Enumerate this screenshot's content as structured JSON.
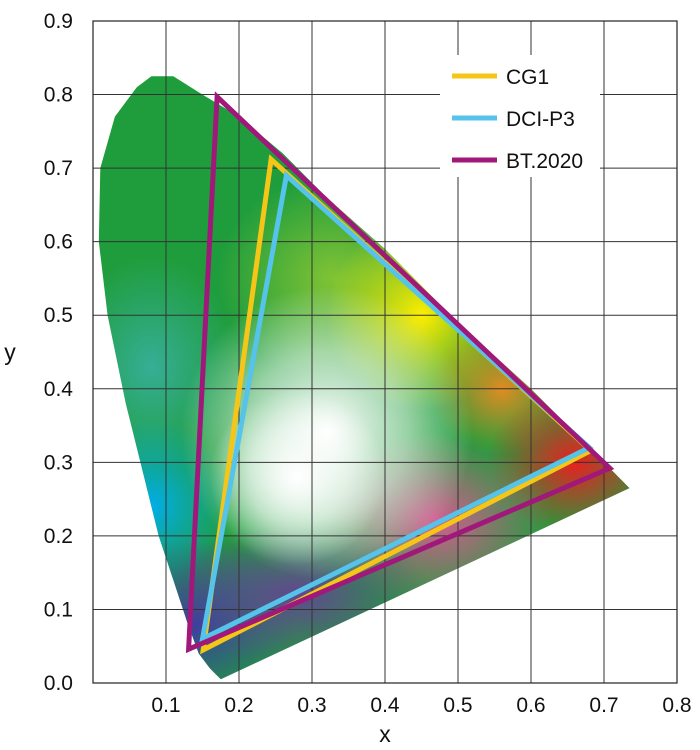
{
  "chart_data": {
    "type": "scatter",
    "title": "",
    "xlabel": "x",
    "ylabel": "y",
    "xlim": [
      0.0,
      0.8
    ],
    "ylim": [
      0.0,
      0.9
    ],
    "x_ticks": [
      "0.1",
      "0.2",
      "0.3",
      "0.4",
      "0.5",
      "0.6",
      "0.7",
      "0.8"
    ],
    "y_ticks": [
      "0.0",
      "0.1",
      "0.2",
      "0.3",
      "0.4",
      "0.5",
      "0.6",
      "0.7",
      "0.8",
      "0.9"
    ],
    "grid": true,
    "legend_position": "top-right",
    "spectral_locus": [
      [
        0.175,
        0.005
      ],
      [
        0.17,
        0.01
      ],
      [
        0.16,
        0.02
      ],
      [
        0.145,
        0.04
      ],
      [
        0.13,
        0.08
      ],
      [
        0.11,
        0.14
      ],
      [
        0.09,
        0.2
      ],
      [
        0.07,
        0.28
      ],
      [
        0.045,
        0.38
      ],
      [
        0.02,
        0.5
      ],
      [
        0.008,
        0.6
      ],
      [
        0.01,
        0.7
      ],
      [
        0.03,
        0.77
      ],
      [
        0.06,
        0.81
      ],
      [
        0.08,
        0.825
      ],
      [
        0.11,
        0.825
      ],
      [
        0.15,
        0.8
      ],
      [
        0.2,
        0.77
      ],
      [
        0.26,
        0.72
      ],
      [
        0.32,
        0.66
      ],
      [
        0.4,
        0.59
      ],
      [
        0.5,
        0.49
      ],
      [
        0.6,
        0.4
      ],
      [
        0.68,
        0.32
      ],
      [
        0.735,
        0.265
      ]
    ],
    "series": [
      {
        "name": "CG1",
        "color": "#f5c518",
        "points": [
          [
            0.151,
            0.045
          ],
          [
            0.244,
            0.712
          ],
          [
            0.682,
            0.316
          ]
        ]
      },
      {
        "name": "DCI-P3",
        "color": "#55c3ea",
        "points": [
          [
            0.15,
            0.06
          ],
          [
            0.265,
            0.69
          ],
          [
            0.68,
            0.32
          ]
        ]
      },
      {
        "name": "BT.2020",
        "color": "#a0187a",
        "points": [
          [
            0.131,
            0.046
          ],
          [
            0.17,
            0.797
          ],
          [
            0.708,
            0.292
          ]
        ]
      }
    ]
  }
}
